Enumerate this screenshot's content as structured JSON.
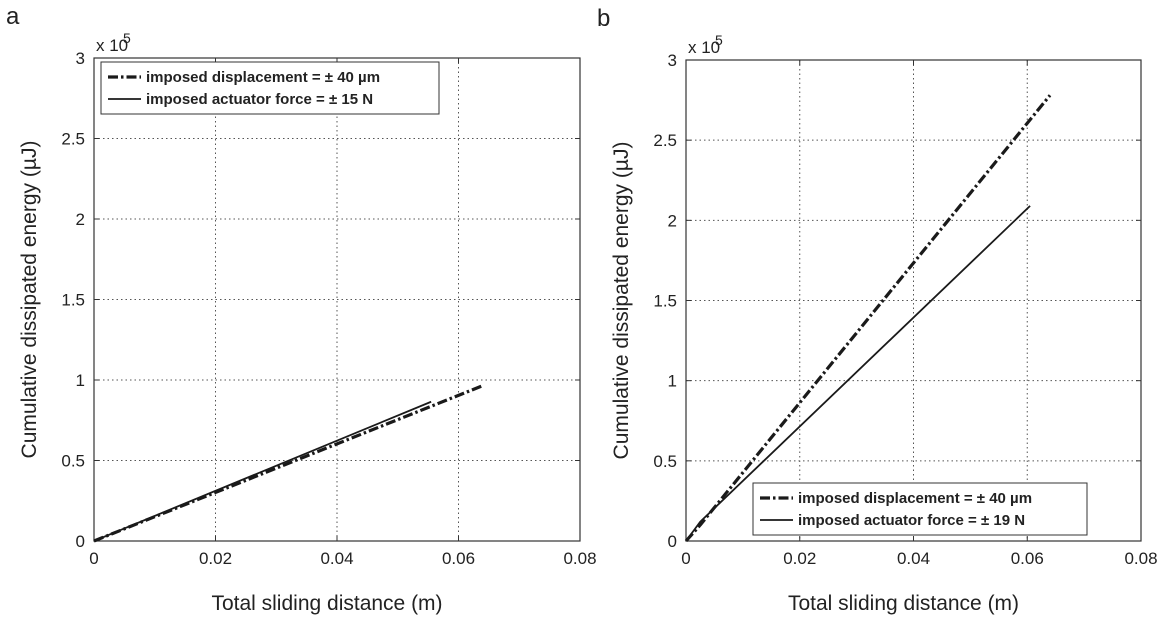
{
  "chart_data": [
    {
      "panel_label": "a",
      "type": "line",
      "xlabel": "Total sliding distance (m)",
      "ylabel": "Cumulative dissipated energy (µJ)",
      "y_multiplier_label": "x 10",
      "y_multiplier_exponent": "5",
      "xlim": [
        0,
        0.08
      ],
      "ylim": [
        0,
        3
      ],
      "x_ticks": [
        "0",
        "0.02",
        "0.04",
        "0.06",
        "0.08"
      ],
      "y_ticks": [
        "0",
        "0.5",
        "1",
        "1.5",
        "2",
        "2.5",
        "3"
      ],
      "grid": true,
      "legend_position": "top-left",
      "series": [
        {
          "name": "imposed displacement = ± 40 µm",
          "style": "dash-dot",
          "x": [
            0,
            0.064
          ],
          "y": [
            0,
            0.965
          ]
        },
        {
          "name": "imposed actuator force = ± 15 N",
          "style": "solid",
          "x": [
            0,
            0.0555
          ],
          "y": [
            0,
            0.865
          ]
        }
      ]
    },
    {
      "panel_label": "b",
      "type": "line",
      "xlabel": "Total sliding distance (m)",
      "ylabel": "Cumulative dissipated energy (µJ)",
      "y_multiplier_label": "x 10",
      "y_multiplier_exponent": "5",
      "xlim": [
        0,
        0.08
      ],
      "ylim": [
        0,
        3
      ],
      "x_ticks": [
        "0",
        "0.02",
        "0.04",
        "0.06",
        "0.08"
      ],
      "y_ticks": [
        "0",
        "0.5",
        "1",
        "1.5",
        "2",
        "2.5",
        "3"
      ],
      "grid": true,
      "legend_position": "bottom-right",
      "series": [
        {
          "name": "imposed displacement = ± 40 µm",
          "style": "dash-dot",
          "x": [
            0,
            0.0025,
            0.064
          ],
          "y": [
            0,
            0.1,
            2.78
          ]
        },
        {
          "name": "imposed actuator force = ± 19 N",
          "style": "solid",
          "x": [
            0,
            0.0025,
            0.0605
          ],
          "y": [
            0,
            0.12,
            2.09
          ]
        }
      ]
    }
  ]
}
